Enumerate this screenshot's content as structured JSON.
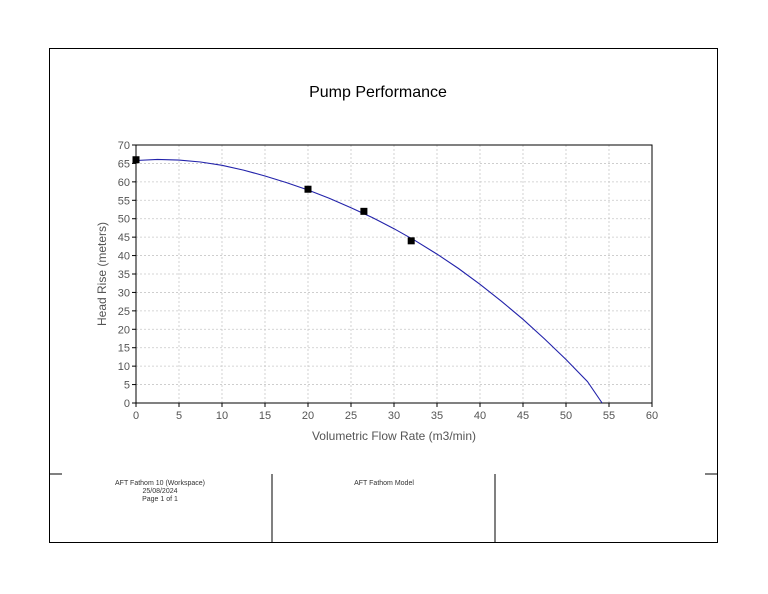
{
  "chart_data": {
    "type": "line",
    "title": "Pump Performance",
    "xlabel": "Volumetric Flow Rate (m3/min)",
    "ylabel": "Head Rise (meters)",
    "xlim": [
      0,
      60
    ],
    "ylim": [
      0,
      70
    ],
    "xticks": [
      "0",
      "5",
      "10",
      "15",
      "20",
      "25",
      "30",
      "35",
      "40",
      "45",
      "50",
      "55",
      "60"
    ],
    "yticks": [
      "0",
      "5",
      "10",
      "15",
      "20",
      "25",
      "30",
      "35",
      "40",
      "45",
      "50",
      "55",
      "60",
      "65",
      "70"
    ],
    "grid": true,
    "series": [
      {
        "type": "line",
        "color": "#2222aa",
        "x": [
          0,
          2.5,
          5,
          7.5,
          10,
          12.5,
          15,
          17.5,
          20,
          22.5,
          25,
          27.5,
          30,
          32.5,
          35,
          37.5,
          40,
          42.5,
          45,
          47.5,
          50,
          52.5,
          54.2
        ],
        "y": [
          65.8,
          66.1,
          65.9,
          65.4,
          64.5,
          63.2,
          61.6,
          59.8,
          57.8,
          55.5,
          53.0,
          50.3,
          47.3,
          44.0,
          40.4,
          36.5,
          32.2,
          27.6,
          22.7,
          17.4,
          11.8,
          5.8,
          0
        ]
      },
      {
        "type": "scatter",
        "marker": "square",
        "color": "#000000",
        "x": [
          0,
          20,
          26.5,
          32
        ],
        "y": [
          66,
          58,
          52,
          44
        ]
      }
    ]
  },
  "footer": {
    "left_line1": "AFT Fathom 10  (Workspace)",
    "left_line2": "25/08/2024",
    "left_line3": "Page 1 of 1",
    "middle": "AFT Fathom Model"
  }
}
